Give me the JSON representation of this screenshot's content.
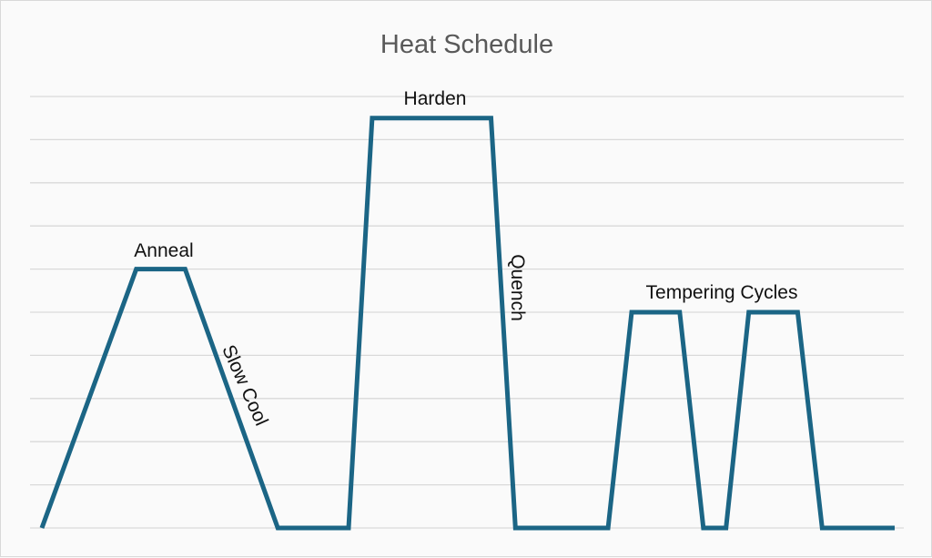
{
  "chart_data": {
    "type": "line",
    "title": "Heat Schedule",
    "xlabel": "",
    "ylabel": "",
    "grid": true,
    "legend": null,
    "axis_tick_labels_visible": false,
    "line_color": "#1b6585",
    "gridline_color": "#d9d9d9",
    "ylim": [
      0,
      10
    ],
    "gridline_count": 11,
    "series": [
      {
        "name": "Heat Schedule",
        "x": [
          0,
          10.8,
          16.4,
          27.0,
          35.1,
          37.8,
          51.4,
          54.2,
          64.8,
          67.5,
          73.0,
          75.7,
          78.3,
          80.9,
          86.5,
          89.3,
          97.6
        ],
        "y": [
          0,
          6,
          6,
          0,
          0,
          9.5,
          9.5,
          0,
          0,
          5,
          5,
          0,
          0,
          5,
          5,
          0,
          0
        ]
      }
    ],
    "annotations": [
      {
        "text": "Anneal",
        "segment": "first plateau",
        "rotation": 0
      },
      {
        "text": "Slow Cool",
        "segment": "anneal cooling ramp",
        "rotation": 66
      },
      {
        "text": "Harden",
        "segment": "tall plateau",
        "rotation": 0
      },
      {
        "text": "Quench",
        "segment": "harden cooling ramp",
        "rotation": 90
      },
      {
        "text": "Tempering Cycles",
        "segment": "two final plateaus",
        "rotation": 0
      }
    ]
  },
  "labels": {
    "title": "Heat Schedule",
    "anneal": "Anneal",
    "slow_cool": "Slow Cool",
    "harden": "Harden",
    "quench": "Quench",
    "tempering": "Tempering Cycles"
  }
}
